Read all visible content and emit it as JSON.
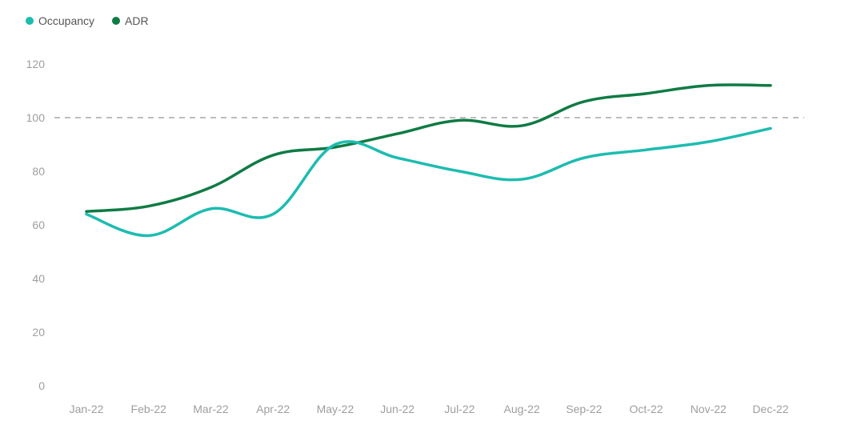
{
  "chart_data": {
    "type": "line",
    "categories": [
      "Jan-22",
      "Feb-22",
      "Mar-22",
      "Apr-22",
      "May-22",
      "Jun-22",
      "Jul-22",
      "Aug-22",
      "Sep-22",
      "Oct-22",
      "Nov-22",
      "Dec-22"
    ],
    "series": [
      {
        "name": "Occupancy",
        "color": "#1dbcb0",
        "values": [
          64,
          56,
          66,
          64,
          90,
          85,
          80,
          77,
          85,
          88,
          91,
          96
        ]
      },
      {
        "name": "ADR",
        "color": "#0f7b45",
        "values": [
          65,
          67,
          74,
          86,
          89,
          94,
          99,
          97,
          106,
          109,
          112,
          112
        ]
      }
    ],
    "ylim": [
      0,
      120
    ],
    "yticks": [
      0,
      20,
      40,
      60,
      80,
      100,
      120
    ],
    "reference_line": {
      "value": 100,
      "style": "dashed",
      "color": "#bdbdbd"
    },
    "grid": false,
    "legend_position": "top-left",
    "title": "",
    "xlabel": "",
    "ylabel": ""
  }
}
